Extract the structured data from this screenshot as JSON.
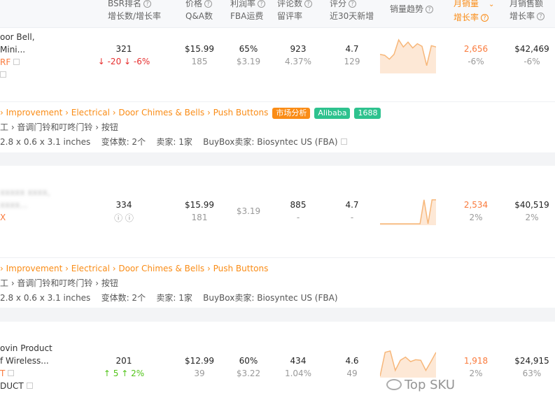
{
  "header": {
    "columns": [
      {
        "l1": "BSR排名",
        "l2": "增长数/增长率"
      },
      {
        "l1": "价格",
        "l2": "Q&A数"
      },
      {
        "l1": "利润率",
        "l2": "FBA运费"
      },
      {
        "l1": "评论数",
        "l2": "留评率"
      },
      {
        "l1": "评分",
        "l2": "近30天新增"
      },
      {
        "l1": "销量趋势",
        "l2": ""
      },
      {
        "l1": "月销量",
        "l2": "增长率"
      },
      {
        "l1": "月销售额",
        "l2": "增长率"
      }
    ],
    "sorted_column": "月销量",
    "accent": "#fa8c16"
  },
  "rows": [
    {
      "name1": "oor Bell,",
      "name2": "Mini...",
      "brand": "RF",
      "bsr": "321",
      "bsr_change": "-20",
      "bsr_rate": "-6%",
      "bsr_dir": "down",
      "price": "$15.99",
      "qa": "185",
      "margin": "65%",
      "fba": "$3.19",
      "reviews": "923",
      "review_rate": "4.37%",
      "rating": "4.7",
      "new_ratings": "129",
      "sales": "2,656",
      "sales_growth": "-6%",
      "revenue": "$42,469",
      "revenue_growth": "-6%",
      "trend": [
        0.55,
        0.52,
        0.4,
        0.55,
        1.0,
        0.78,
        0.93,
        0.75,
        0.88,
        0.8,
        0.2,
        0.82,
        0.78
      ]
    },
    {
      "name1": "xxxxx xxxx,",
      "name2": "xxxx...",
      "brand": "X",
      "bsr": "334",
      "price": "$15.99",
      "qa": "181",
      "fba": "$3.19",
      "reviews": "885",
      "review_rate": "-",
      "rating": "4.7",
      "new_ratings": "-",
      "sales": "2,534",
      "sales_growth": "2%",
      "revenue": "$40,519",
      "revenue_growth": "2%",
      "trend": [
        0,
        0,
        0,
        0,
        0,
        0,
        0,
        0,
        0,
        0,
        0,
        0.95,
        0,
        0.95,
        0.95
      ]
    },
    {
      "name1": "ovin Product",
      "name2": "f Wireless...",
      "brand": "T",
      "brand2": "DUCT",
      "bsr": "201",
      "bsr_change": "5",
      "bsr_rate": "2%",
      "bsr_dir": "up",
      "price": "$12.99",
      "qa": "39",
      "margin": "60%",
      "fba": "$3.22",
      "reviews": "434",
      "review_rate": "1.04%",
      "rating": "4.6",
      "new_ratings": "49",
      "sales": "1,918",
      "sales_growth": "2%",
      "revenue": "$24,915",
      "revenue_growth": "63%",
      "trend": [
        0,
        0.9,
        0.95,
        0.22,
        0.6,
        0.72,
        0.55,
        0.62,
        0.6,
        0.22,
        0.55,
        0.9
      ]
    }
  ],
  "details": [
    {
      "crumbs": "› Improvement › Electrical › Door Chimes & Bells › Push Buttons",
      "cn_crumbs": "工 › 音调门铃和叮咚门铃 › 按钮",
      "dims": "2.8 x 0.6 x 3.1 inches",
      "variants": "变体数: 2个",
      "sellers": "卖家: 1家",
      "buybox": "BuyBox卖家: Biosyntec US (FBA)"
    },
    {
      "crumbs": "› Improvement › Electrical › Door Chimes & Bells › Push Buttons",
      "cn_crumbs": "工 › 音调门铃和叮咚门铃 › 按钮",
      "dims": "2.8 x 0.6 x 3.1 inches",
      "variants": "变体数: 2个",
      "sellers": "卖家: 1家",
      "buybox": "BuyBox卖家: Biosyntec US (FBA)"
    }
  ],
  "tags": {
    "market": "市场分析",
    "alibaba": "Alibaba",
    "n1688": "1688",
    "market_color": "#fa8c16",
    "green": "#2ec28e"
  },
  "watermark": "Top SKU"
}
